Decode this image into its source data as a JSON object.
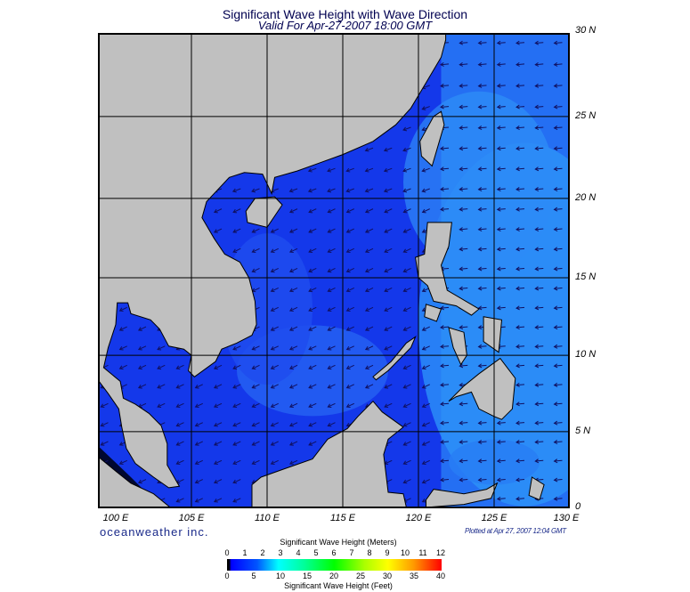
{
  "title": "Significant Wave Height with Wave Direction",
  "subtitle": "Valid For Apr-27-2007 18:00 GMT",
  "map": {
    "region": "South China Sea / Philippines",
    "lon_range": [
      99,
      130
    ],
    "lat_range": [
      0,
      30
    ],
    "lon_labels": [
      "100 E",
      "105 E",
      "110 E",
      "115 E",
      "120 E",
      "125 E",
      "130 E"
    ],
    "lat_labels": [
      "30 N",
      "25 N",
      "20 N",
      "15 N",
      "10 N",
      "5 N",
      "0"
    ],
    "land_color": "#c0c0c0",
    "arrow_color": "#101060"
  },
  "brand": "oceanweather inc.",
  "plotted": "Plotted at Apr 27, 2007 12:04 GMT",
  "colorbar": {
    "top_title": "Significant Wave Height (Meters)",
    "bottom_title": "Significant Wave Height (Feet)",
    "meters": [
      "0",
      "1",
      "2",
      "3",
      "4",
      "5",
      "6",
      "7",
      "8",
      "9",
      "10",
      "11",
      "12"
    ],
    "feet": [
      "0",
      "5",
      "10",
      "15",
      "20",
      "25",
      "30",
      "35",
      "40"
    ]
  }
}
